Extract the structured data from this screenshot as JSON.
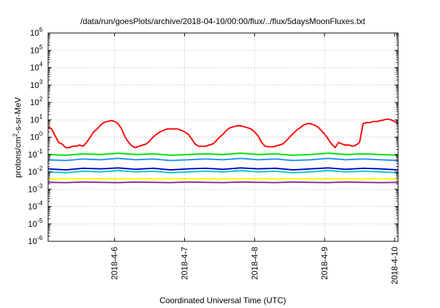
{
  "chart_data": {
    "type": "line",
    "title": "/data/run/goesPlots/archive/2018-04-10/00:00/flux/../flux/5daysMoonFluxes.txt",
    "xlabel": "Coordinated Universal Time (UTC)",
    "ylabel_main": "protons/cm",
    "ylabel_sup": "2",
    "ylabel_tail": "-s-sr-MeV",
    "yscale": "log",
    "ylim": [
      1e-06,
      1000000.0
    ],
    "xlim": [
      0,
      5
    ],
    "x_ticks": [
      {
        "x": 0.95,
        "label": "2018-4-6"
      },
      {
        "x": 1.95,
        "label": "2018-4-7"
      },
      {
        "x": 2.95,
        "label": "2018-4-8"
      },
      {
        "x": 3.95,
        "label": "2018-4-9"
      },
      {
        "x": 4.95,
        "label": "2018-4-10"
      }
    ],
    "y_ticks": [
      {
        "exp": -6,
        "base": "10",
        "sup": "-6"
      },
      {
        "exp": -5,
        "base": "10",
        "sup": "-5"
      },
      {
        "exp": -4,
        "base": "10",
        "sup": "-4"
      },
      {
        "exp": -3,
        "base": "10",
        "sup": "-3"
      },
      {
        "exp": -2,
        "base": "10",
        "sup": "-2"
      },
      {
        "exp": -1,
        "base": "10",
        "sup": "-1"
      },
      {
        "exp": 0,
        "base": "10",
        "sup": "0"
      },
      {
        "exp": 1,
        "base": "10",
        "sup": "1"
      },
      {
        "exp": 2,
        "base": "10",
        "sup": "2"
      },
      {
        "exp": 3,
        "base": "10",
        "sup": "3"
      },
      {
        "exp": 4,
        "base": "10",
        "sup": "4"
      },
      {
        "exp": 5,
        "base": "10",
        "sup": "5"
      },
      {
        "exp": 6,
        "base": "10",
        "sup": "6"
      }
    ],
    "grid": true,
    "series": [
      {
        "color": "#ff0000",
        "x": [
          0,
          0.05,
          0.1,
          0.15,
          0.2,
          0.25,
          0.3,
          0.35,
          0.4,
          0.45,
          0.5,
          0.55,
          0.6,
          0.65,
          0.7,
          0.75,
          0.8,
          0.85,
          0.9,
          0.95,
          1.0,
          1.05,
          1.1,
          1.15,
          1.2,
          1.25,
          1.3,
          1.35,
          1.4,
          1.45,
          1.5,
          1.55,
          1.6,
          1.65,
          1.7,
          1.75,
          1.8,
          1.85,
          1.9,
          1.95,
          2.0,
          2.05,
          2.1,
          2.15,
          2.2,
          2.25,
          2.3,
          2.35,
          2.4,
          2.45,
          2.5,
          2.55,
          2.6,
          2.65,
          2.7,
          2.75,
          2.8,
          2.85,
          2.9,
          2.95,
          3.0,
          3.05,
          3.1,
          3.15,
          3.2,
          3.25,
          3.3,
          3.35,
          3.4,
          3.45,
          3.5,
          3.55,
          3.6,
          3.65,
          3.7,
          3.75,
          3.8,
          3.85,
          3.9,
          3.95,
          4.0,
          4.05,
          4.1,
          4.15,
          4.2,
          4.25,
          4.3,
          4.35,
          4.4,
          4.45,
          4.5,
          4.55,
          4.6,
          4.65,
          4.7,
          4.75,
          4.8,
          4.85,
          4.9,
          4.95,
          5.0
        ],
        "y": [
          4,
          3,
          1.2,
          0.5,
          0.4,
          0.25,
          0.25,
          0.3,
          0.3,
          0.35,
          0.3,
          0.5,
          1,
          2,
          3,
          5,
          7,
          8,
          9,
          8,
          6,
          3,
          1,
          0.5,
          0.3,
          0.25,
          0.3,
          0.35,
          0.4,
          0.6,
          1,
          1.5,
          2,
          2.5,
          3,
          3,
          3,
          3,
          2.5,
          2,
          1.5,
          0.8,
          0.4,
          0.3,
          0.3,
          0.3,
          0.35,
          0.4,
          0.6,
          1,
          1.5,
          2.5,
          3.5,
          4,
          4.5,
          4.5,
          4,
          3.5,
          3,
          2,
          1.2,
          0.5,
          0.3,
          0.28,
          0.28,
          0.3,
          0.35,
          0.4,
          0.6,
          1,
          1.6,
          2.5,
          3.5,
          5,
          6,
          6,
          5,
          4,
          2.5,
          1.5,
          0.8,
          0.4,
          0.25,
          0.5,
          0.4,
          0.35,
          0.35,
          0.3,
          0.35,
          0.5,
          6,
          7,
          7,
          8,
          8,
          9,
          10,
          11,
          10,
          8,
          6
        ]
      },
      {
        "color": "#00e600",
        "x": [
          0,
          0.25,
          0.5,
          0.75,
          1,
          1.25,
          1.5,
          1.75,
          2,
          2.25,
          2.5,
          2.75,
          3,
          3.25,
          3.5,
          3.75,
          4,
          4.25,
          4.5,
          4.75,
          5
        ],
        "y": [
          0.1,
          0.09,
          0.11,
          0.1,
          0.12,
          0.1,
          0.11,
          0.09,
          0.1,
          0.11,
          0.1,
          0.12,
          0.1,
          0.11,
          0.09,
          0.1,
          0.12,
          0.1,
          0.11,
          0.1,
          0.09
        ]
      },
      {
        "color": "#1e90ff",
        "x": [
          0,
          0.25,
          0.5,
          0.75,
          1,
          1.25,
          1.5,
          1.75,
          2,
          2.25,
          2.5,
          2.75,
          3,
          3.25,
          3.5,
          3.75,
          4,
          4.25,
          4.5,
          4.75,
          5
        ],
        "y": [
          0.05,
          0.045,
          0.055,
          0.05,
          0.06,
          0.05,
          0.055,
          0.045,
          0.05,
          0.055,
          0.05,
          0.06,
          0.05,
          0.055,
          0.045,
          0.05,
          0.06,
          0.05,
          0.055,
          0.05,
          0.045
        ]
      },
      {
        "color": "#00c8c8",
        "x": [
          0,
          0.25,
          0.5,
          0.75,
          1,
          1.25,
          1.5,
          1.75,
          2,
          2.25,
          2.5,
          2.75,
          3,
          3.25,
          3.5,
          3.75,
          4,
          4.25,
          4.5,
          4.75,
          5
        ],
        "y": [
          0.01,
          0.009,
          0.011,
          0.01,
          0.012,
          0.01,
          0.011,
          0.009,
          0.01,
          0.011,
          0.01,
          0.012,
          0.01,
          0.011,
          0.009,
          0.01,
          0.012,
          0.01,
          0.011,
          0.01,
          0.009
        ]
      },
      {
        "color": "#0000cd",
        "x": [
          0,
          0.25,
          0.5,
          0.75,
          1,
          1.25,
          1.5,
          1.75,
          2,
          2.25,
          2.5,
          2.75,
          3,
          3.25,
          3.5,
          3.75,
          4,
          4.25,
          4.5,
          4.75,
          5
        ],
        "y": [
          0.015,
          0.013,
          0.016,
          0.015,
          0.017,
          0.014,
          0.016,
          0.013,
          0.015,
          0.016,
          0.014,
          0.017,
          0.015,
          0.016,
          0.013,
          0.015,
          0.017,
          0.014,
          0.016,
          0.015,
          0.013
        ]
      },
      {
        "color": "#ffff00",
        "x": [
          0,
          0.5,
          1,
          1.5,
          2,
          2.5,
          3,
          3.5,
          4,
          4.5,
          5
        ],
        "y": [
          0.004,
          0.004,
          0.004,
          0.004,
          0.004,
          0.004,
          0.004,
          0.004,
          0.004,
          0.004,
          0.004
        ]
      },
      {
        "color": "#8b2c8b",
        "x": [
          0,
          0.25,
          0.5,
          0.75,
          1,
          1.25,
          1.5,
          1.75,
          2,
          2.25,
          2.5,
          2.75,
          3,
          3.25,
          3.5,
          3.75,
          4,
          4.25,
          4.5,
          4.75,
          5
        ],
        "y": [
          0.0025,
          0.0024,
          0.0026,
          0.0025,
          0.0024,
          0.0026,
          0.0025,
          0.0024,
          0.0026,
          0.0025,
          0.0024,
          0.0026,
          0.0025,
          0.0024,
          0.0026,
          0.0025,
          0.0024,
          0.0026,
          0.0025,
          0.0024,
          0.0025
        ]
      }
    ]
  }
}
